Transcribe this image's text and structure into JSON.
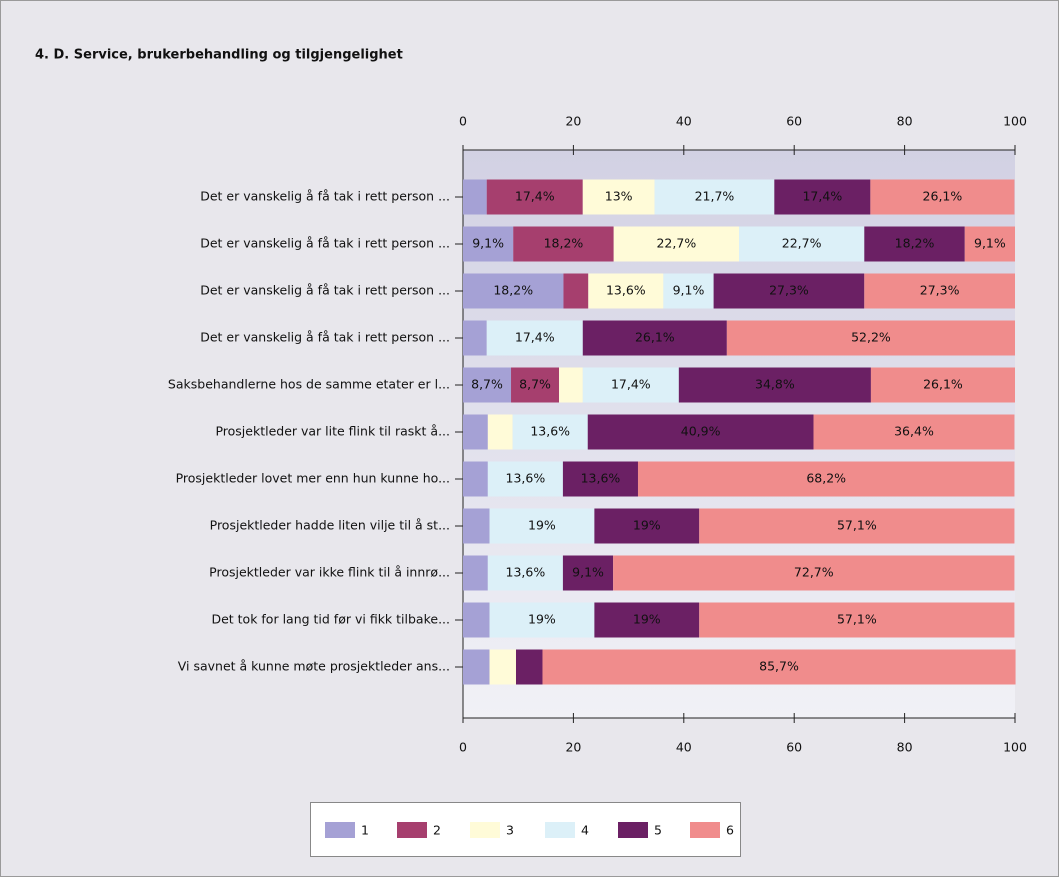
{
  "chart_data": {
    "type": "stacked-barh",
    "title": "4. D. Service, brukerbehandling og tilgjengelighet",
    "categories": [
      "Det er vanskelig å få tak i rett person ...",
      "Det er vanskelig å få tak i rett person ...",
      "Det er vanskelig å få tak i rett person ...",
      "Det er vanskelig å få tak i rett person ...",
      "Saksbehandlerne hos de samme etater er l...",
      "Prosjektleder var lite flink til raskt å...",
      "Prosjektleder lovet mer enn hun kunne ho...",
      "Prosjektleder hadde liten vilje til å st...",
      "Prosjektleder var ikke flink til å innrø...",
      "Det tok for lang tid før vi fikk tilbake...",
      "Vi savnet å kunne møte prosjektleder ans..."
    ],
    "series": [
      {
        "name": "1",
        "color": "#a5a1d5",
        "values": [
          4.3,
          9.1,
          18.2,
          4.3,
          8.7,
          4.5,
          4.5,
          4.8,
          4.5,
          4.8,
          4.8
        ],
        "value_labels": [
          null,
          "9,1%",
          "18,2%",
          null,
          "8,7%",
          null,
          null,
          null,
          null,
          null,
          null
        ]
      },
      {
        "name": "2",
        "color": "#a63f6e",
        "values": [
          17.4,
          18.2,
          4.5,
          0,
          8.7,
          0,
          0,
          0,
          0,
          0,
          0
        ],
        "value_labels": [
          "17,4%",
          "18,2%",
          null,
          null,
          "8,7%",
          null,
          null,
          null,
          null,
          null,
          null
        ]
      },
      {
        "name": "3",
        "color": "#fffbd8",
        "values": [
          13,
          22.7,
          13.6,
          0,
          4.3,
          4.5,
          0,
          0,
          0,
          0,
          4.8
        ],
        "value_labels": [
          "13%",
          "22,7%",
          "13,6%",
          null,
          null,
          null,
          null,
          null,
          null,
          null,
          null
        ]
      },
      {
        "name": "4",
        "color": "#dcf0f8",
        "values": [
          21.7,
          22.7,
          9.1,
          17.4,
          17.4,
          13.6,
          13.6,
          19,
          13.6,
          19,
          0
        ],
        "value_labels": [
          "21,7%",
          "22,7%",
          "9,1%",
          "17,4%",
          "17,4%",
          "13,6%",
          "13,6%",
          "19%",
          "13,6%",
          "19%",
          null
        ]
      },
      {
        "name": "5",
        "color": "#6b2064",
        "values": [
          17.4,
          18.2,
          27.3,
          26.1,
          34.8,
          40.9,
          13.6,
          19,
          9.1,
          19,
          4.8
        ],
        "value_labels": [
          "17,4%",
          "18,2%",
          "27,3%",
          "26,1%",
          "34,8%",
          "40,9%",
          "13,6%",
          "19%",
          "9,1%",
          "19%",
          null
        ]
      },
      {
        "name": "6",
        "color": "#f08c8c",
        "values": [
          26.1,
          9.1,
          27.3,
          52.2,
          26.1,
          36.4,
          68.2,
          57.1,
          72.7,
          57.1,
          85.7
        ],
        "value_labels": [
          "26,1%",
          "9,1%",
          "27,3%",
          "52,2%",
          "26,1%",
          "36,4%",
          "68,2%",
          "57,1%",
          "72,7%",
          "57,1%",
          "85,7%"
        ]
      }
    ],
    "xlim": [
      0,
      100
    ],
    "xticks": [
      0,
      20,
      40,
      60,
      80,
      100
    ]
  }
}
